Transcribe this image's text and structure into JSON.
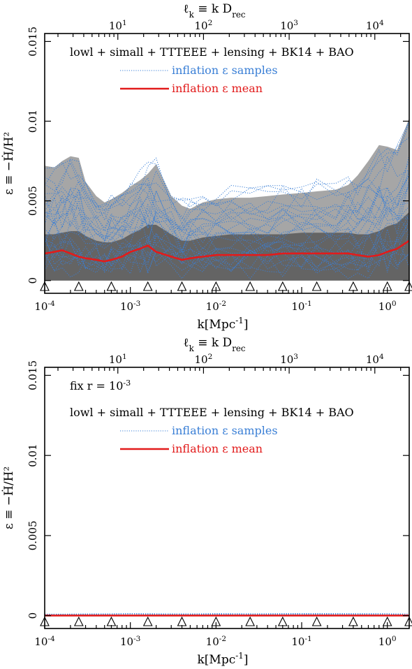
{
  "chart_data": [
    {
      "type": "line",
      "panel": "top",
      "top_axis_label": "ℓ_k ≡ k D_rec",
      "top_ticks": [
        "10^1",
        "10^2",
        "10^3",
        "10^4"
      ],
      "top_tick_values": [
        10,
        100,
        1000,
        10000
      ],
      "xlabel": "k[Mpc^-1]",
      "ylabel": "ε ≡ −Ḣ/H²",
      "x_scale": "log",
      "xlim": [
        0.0001,
        1.8
      ],
      "ylim": [
        -0.0008,
        0.0155
      ],
      "x_ticks": [
        "10^-4",
        "10^-3",
        "10^-2",
        "10^-1",
        "10^0"
      ],
      "x_tick_values": [
        0.0001,
        0.001,
        0.01,
        0.1,
        1
      ],
      "y_ticks": [
        "0",
        "0.005",
        "0.01",
        "0.015"
      ],
      "y_tick_values": [
        0,
        0.005,
        0.01,
        0.015
      ],
      "annotation": "",
      "legend_title": "lowl + simall + TTTEEE + lensing + BK14 + BAO",
      "legend": [
        {
          "label": "inflation ε samples",
          "style": "dotted",
          "color": "#3a7fd6"
        },
        {
          "label": "inflation ε mean",
          "style": "solid",
          "color": "#e21b1b"
        }
      ],
      "knots_k": [
        0.0001,
        0.00025,
        0.0006,
        0.0016,
        0.004,
        0.01,
        0.025,
        0.06,
        0.15,
        0.4,
        1.0,
        1.8
      ],
      "bands": {
        "k": [
          0.0001,
          0.00013,
          0.00016,
          0.0002,
          0.00025,
          0.0003,
          0.0004,
          0.0005,
          0.0006,
          0.0008,
          0.001,
          0.0013,
          0.0016,
          0.002,
          0.003,
          0.004,
          0.005,
          0.007,
          0.01,
          0.015,
          0.025,
          0.04,
          0.06,
          0.1,
          0.15,
          0.25,
          0.35,
          0.45,
          0.6,
          0.8,
          1.0,
          1.3,
          1.8
        ],
        "outer_upper": [
          0.0072,
          0.0071,
          0.0075,
          0.0078,
          0.0077,
          0.0062,
          0.0053,
          0.0049,
          0.0051,
          0.0055,
          0.0059,
          0.0063,
          0.0067,
          0.0073,
          0.0053,
          0.0047,
          0.0045,
          0.0049,
          0.0051,
          0.0052,
          0.0052,
          0.0053,
          0.0054,
          0.0055,
          0.0056,
          0.0057,
          0.006,
          0.0066,
          0.0075,
          0.0085,
          0.0084,
          0.0082,
          0.0102
        ],
        "inner_upper": [
          0.0029,
          0.0029,
          0.003,
          0.0031,
          0.0031,
          0.0028,
          0.0025,
          0.0024,
          0.0024,
          0.0026,
          0.0029,
          0.0032,
          0.0035,
          0.0035,
          0.0029,
          0.0025,
          0.0025,
          0.0027,
          0.0028,
          0.0029,
          0.0029,
          0.0029,
          0.0029,
          0.003,
          0.003,
          0.003,
          0.003,
          0.0029,
          0.0029,
          0.0031,
          0.0034,
          0.0036,
          0.0043
        ]
      },
      "mean": {
        "k": [
          0.0001,
          0.00013,
          0.00016,
          0.0002,
          0.00025,
          0.0003,
          0.0004,
          0.0005,
          0.0006,
          0.0008,
          0.001,
          0.0013,
          0.0016,
          0.002,
          0.003,
          0.004,
          0.005,
          0.007,
          0.01,
          0.015,
          0.025,
          0.04,
          0.06,
          0.1,
          0.15,
          0.25,
          0.35,
          0.45,
          0.6,
          0.8,
          1.0,
          1.3,
          1.8
        ],
        "values": [
          0.0017,
          0.0018,
          0.0019,
          0.0017,
          0.0015,
          0.0014,
          0.0013,
          0.0012,
          0.0013,
          0.0015,
          0.0018,
          0.002,
          0.0022,
          0.0018,
          0.0015,
          0.0013,
          0.0014,
          0.0015,
          0.0016,
          0.0016,
          0.0016,
          0.0016,
          0.0017,
          0.0017,
          0.0017,
          0.0017,
          0.0017,
          0.0016,
          0.0015,
          0.0016,
          0.0018,
          0.002,
          0.0025
        ]
      },
      "sample_count": 28
    },
    {
      "type": "line",
      "panel": "bottom",
      "top_axis_label": "ℓ_k ≡ k D_rec",
      "top_ticks": [
        "10^1",
        "10^2",
        "10^3",
        "10^4"
      ],
      "top_tick_values": [
        10,
        100,
        1000,
        10000
      ],
      "xlabel": "k[Mpc^-1]",
      "ylabel": "ε ≡ −Ḣ/H²",
      "x_scale": "log",
      "xlim": [
        0.0001,
        1.8
      ],
      "ylim": [
        -0.0008,
        0.0155
      ],
      "x_ticks": [
        "10^-4",
        "10^-3",
        "10^-2",
        "10^-1",
        "10^0"
      ],
      "x_tick_values": [
        0.0001,
        0.001,
        0.01,
        0.1,
        1
      ],
      "y_ticks": [
        "0",
        "0.005",
        "0.01",
        "0.015"
      ],
      "y_tick_values": [
        0,
        0.005,
        0.01,
        0.015
      ],
      "annotation": "fix r = 10^-3",
      "legend_title": "lowl + simall + TTTEEE + lensing + BK14 + BAO",
      "legend": [
        {
          "label": "inflation ε samples",
          "style": "dotted",
          "color": "#3a7fd6"
        },
        {
          "label": "inflation ε mean",
          "style": "solid",
          "color": "#e21b1b"
        }
      ],
      "knots_k": [
        0.0001,
        0.00025,
        0.0006,
        0.0016,
        0.004,
        0.01,
        0.025,
        0.06,
        0.15,
        0.4,
        1.0,
        1.8
      ],
      "mean": {
        "k": [
          0.0001,
          0.001,
          0.01,
          0.1,
          1.0,
          1.8
        ],
        "values": [
          1e-05,
          1e-05,
          1e-05,
          1e-05,
          1e-05,
          1e-05
        ]
      },
      "sample_count": 6
    }
  ],
  "colors": {
    "outer_band": "#a6a6a6",
    "inner_band": "#646464",
    "samples": "#3a7fd6",
    "mean": "#e21b1b"
  }
}
